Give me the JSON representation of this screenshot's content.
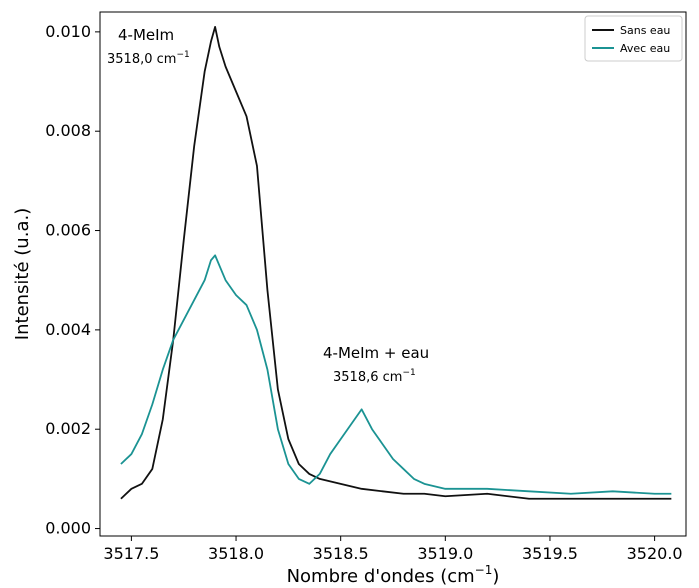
{
  "chart_data": {
    "type": "line",
    "xlabel_prefix": "Nombre d'ondes (cm",
    "xlabel_sup": "−1",
    "xlabel_suffix": ")",
    "ylabel": "Intensité (u.a.)",
    "xlim": [
      3517.35,
      3520.15
    ],
    "ylim": [
      -0.00015,
      0.0104
    ],
    "xticks": [
      3517.5,
      3518.0,
      3518.5,
      3519.0,
      3519.5,
      3520.0
    ],
    "xtick_labels": [
      "3517.5",
      "3518.0",
      "3518.5",
      "3519.0",
      "3519.5",
      "3520.0"
    ],
    "yticks": [
      0.0,
      0.002,
      0.004,
      0.006,
      0.008,
      0.01
    ],
    "ytick_labels": [
      "0.000",
      "0.002",
      "0.004",
      "0.006",
      "0.008",
      "0.010"
    ],
    "legend_position": "top-right",
    "grid": false,
    "annotations": [
      {
        "label": "4-MeIm",
        "value_prefix": "3518,0 cm",
        "value_sup": "−1"
      },
      {
        "label": "4-MeIm + eau",
        "value_prefix": "3518,6 cm",
        "value_sup": "−1"
      }
    ],
    "series": [
      {
        "name": "Sans eau",
        "color": "#111111",
        "x": [
          3517.45,
          3517.5,
          3517.55,
          3517.6,
          3517.65,
          3517.7,
          3517.75,
          3517.8,
          3517.85,
          3517.88,
          3517.9,
          3517.92,
          3517.95,
          3518.0,
          3518.05,
          3518.1,
          3518.15,
          3518.2,
          3518.25,
          3518.3,
          3518.35,
          3518.4,
          3518.5,
          3518.6,
          3518.7,
          3518.8,
          3518.9,
          3519.0,
          3519.2,
          3519.4,
          3519.6,
          3519.8,
          3520.0,
          3520.08
        ],
        "y": [
          0.0006,
          0.0008,
          0.0009,
          0.0012,
          0.0022,
          0.0038,
          0.0058,
          0.0077,
          0.0092,
          0.0098,
          0.0101,
          0.0097,
          0.0093,
          0.0088,
          0.0083,
          0.0073,
          0.0048,
          0.0028,
          0.0018,
          0.0013,
          0.0011,
          0.001,
          0.0009,
          0.0008,
          0.00075,
          0.0007,
          0.0007,
          0.00065,
          0.0007,
          0.0006,
          0.0006,
          0.0006,
          0.0006,
          0.0006
        ]
      },
      {
        "name": "Avec eau",
        "color": "#1b9393",
        "x": [
          3517.45,
          3517.5,
          3517.55,
          3517.6,
          3517.65,
          3517.7,
          3517.75,
          3517.8,
          3517.85,
          3517.88,
          3517.9,
          3517.95,
          3518.0,
          3518.05,
          3518.1,
          3518.15,
          3518.2,
          3518.25,
          3518.3,
          3518.35,
          3518.4,
          3518.45,
          3518.5,
          3518.55,
          3518.6,
          3518.65,
          3518.7,
          3518.75,
          3518.8,
          3518.85,
          3518.9,
          3519.0,
          3519.2,
          3519.4,
          3519.6,
          3519.8,
          3520.0,
          3520.08
        ],
        "y": [
          0.0013,
          0.0015,
          0.0019,
          0.0025,
          0.0032,
          0.0038,
          0.0042,
          0.0046,
          0.005,
          0.0054,
          0.0055,
          0.005,
          0.0047,
          0.0045,
          0.004,
          0.0032,
          0.002,
          0.0013,
          0.001,
          0.0009,
          0.0011,
          0.0015,
          0.0018,
          0.0021,
          0.0024,
          0.002,
          0.0017,
          0.0014,
          0.0012,
          0.001,
          0.0009,
          0.0008,
          0.0008,
          0.00075,
          0.0007,
          0.00075,
          0.0007,
          0.0007
        ]
      }
    ]
  }
}
